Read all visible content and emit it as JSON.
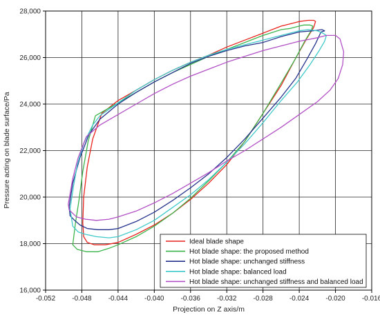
{
  "chart_data": {
    "type": "line",
    "title": "",
    "xlabel": "Projection on Z axis/m",
    "ylabel": "Pressure acting on blade surface/Pa",
    "xlim": [
      -0.052,
      -0.016
    ],
    "ylim": [
      16000,
      28000
    ],
    "x_ticks": [
      -0.052,
      -0.048,
      -0.044,
      -0.04,
      -0.036,
      -0.032,
      -0.028,
      -0.024,
      -0.02,
      -0.016
    ],
    "x_tick_labels": [
      "-0.052",
      "-0.048",
      "-0.044",
      "-0.040",
      "-0.036",
      "-0.032",
      "-0.028",
      "-0.024",
      "-0.020",
      "-0.016"
    ],
    "y_ticks": [
      16000,
      18000,
      20000,
      22000,
      24000,
      26000,
      28000
    ],
    "y_tick_labels": [
      "16,000",
      "18,000",
      "20,000",
      "22,000",
      "24,000",
      "26,000",
      "28,000"
    ],
    "grid": true,
    "legend_position": "bottom-right",
    "series": [
      {
        "name": "Ideal blade shape",
        "color": "#e8211b",
        "x": [
          -0.0458,
          -0.0468,
          -0.0474,
          -0.0478,
          -0.0479,
          -0.0478,
          -0.0474,
          -0.0466,
          -0.0454,
          -0.044,
          -0.042,
          -0.04,
          -0.038,
          -0.036,
          -0.034,
          -0.032,
          -0.03,
          -0.028,
          -0.026,
          -0.0245,
          -0.0232,
          -0.0224,
          -0.0222,
          -0.0224,
          -0.023,
          -0.024,
          -0.025,
          -0.026,
          -0.028,
          -0.03,
          -0.032,
          -0.034,
          -0.036,
          -0.038,
          -0.04,
          -0.042,
          -0.044,
          -0.0458
        ],
        "y": [
          23600,
          22500,
          21300,
          20000,
          18900,
          18300,
          18050,
          17950,
          17950,
          18050,
          18400,
          18800,
          19300,
          19900,
          20600,
          21400,
          22400,
          23600,
          24800,
          25900,
          26800,
          27300,
          27550,
          27600,
          27600,
          27550,
          27450,
          27350,
          27050,
          26750,
          26450,
          26100,
          25800,
          25450,
          25050,
          24600,
          24150,
          23600
        ]
      },
      {
        "name": "Hot blade shape: the proposed method",
        "color": "#3cb44b",
        "x": [
          -0.0465,
          -0.0473,
          -0.0479,
          -0.0483,
          -0.0487,
          -0.049,
          -0.0485,
          -0.0475,
          -0.0462,
          -0.045,
          -0.044,
          -0.042,
          -0.04,
          -0.038,
          -0.036,
          -0.034,
          -0.032,
          -0.03,
          -0.028,
          -0.026,
          -0.0245,
          -0.0234,
          -0.0227,
          -0.0225,
          -0.0228,
          -0.0235,
          -0.024,
          -0.025,
          -0.026,
          -0.028,
          -0.03,
          -0.032,
          -0.034,
          -0.036,
          -0.038,
          -0.04,
          -0.042,
          -0.044,
          -0.0465
        ],
        "y": [
          23500,
          22400,
          21100,
          19900,
          18900,
          17950,
          17750,
          17650,
          17650,
          17800,
          17950,
          18300,
          18750,
          19300,
          19950,
          20700,
          21500,
          22400,
          23600,
          24900,
          25900,
          26700,
          27150,
          27350,
          27400,
          27400,
          27350,
          27250,
          27200,
          26950,
          26650,
          26350,
          26050,
          25700,
          25350,
          24950,
          24500,
          24050,
          23500
        ]
      },
      {
        "name": "Hot blade shape: unchanged stiffness",
        "color": "#23318c",
        "x": [
          -0.0472,
          -0.0482,
          -0.049,
          -0.0494,
          -0.0493,
          -0.0488,
          -0.0482,
          -0.0474,
          -0.0462,
          -0.045,
          -0.044,
          -0.042,
          -0.04,
          -0.038,
          -0.036,
          -0.034,
          -0.032,
          -0.03,
          -0.028,
          -0.026,
          -0.0244,
          -0.0232,
          -0.0222,
          -0.0216,
          -0.0212,
          -0.0215,
          -0.0225,
          -0.024,
          -0.026,
          -0.028,
          -0.03,
          -0.032,
          -0.034,
          -0.036,
          -0.038,
          -0.04,
          -0.042,
          -0.044,
          -0.046,
          -0.0472
        ],
        "y": [
          22700,
          21700,
          20600,
          19600,
          19200,
          19000,
          18800,
          18650,
          18600,
          18600,
          18650,
          18950,
          19350,
          19850,
          20400,
          21000,
          21700,
          22500,
          23400,
          24300,
          25100,
          25900,
          26600,
          27100,
          27150,
          27200,
          27150,
          27100,
          26900,
          26650,
          26500,
          26300,
          26050,
          25750,
          25350,
          24950,
          24500,
          24000,
          23350,
          22700
        ]
      },
      {
        "name": "Hot blade shape: balanced load",
        "color": "#3ec8c8",
        "x": [
          -0.0468,
          -0.0478,
          -0.0485,
          -0.0489,
          -0.0493,
          -0.049,
          -0.0484,
          -0.0476,
          -0.0464,
          -0.045,
          -0.044,
          -0.042,
          -0.04,
          -0.038,
          -0.036,
          -0.034,
          -0.032,
          -0.03,
          -0.028,
          -0.026,
          -0.0242,
          -0.0228,
          -0.0218,
          -0.0212,
          -0.021,
          -0.0214,
          -0.022,
          -0.023,
          -0.024,
          -0.026,
          -0.028,
          -0.03,
          -0.032,
          -0.034,
          -0.036,
          -0.038,
          -0.04,
          -0.042,
          -0.044,
          -0.046,
          -0.0468
        ],
        "y": [
          23100,
          22300,
          21400,
          20500,
          19500,
          18750,
          18500,
          18400,
          18300,
          18250,
          18300,
          18600,
          19000,
          19550,
          20100,
          20750,
          21500,
          22300,
          23200,
          24150,
          24950,
          25700,
          26300,
          26700,
          26950,
          27050,
          27150,
          27200,
          27150,
          26950,
          26750,
          26550,
          26350,
          26100,
          25800,
          25450,
          25050,
          24600,
          24050,
          23500,
          23100
        ]
      },
      {
        "name": "Hot blade shape: unchanged stiffness and balanced load",
        "color": "#b14fc5",
        "x": [
          -0.0475,
          -0.0484,
          -0.049,
          -0.0495,
          -0.0494,
          -0.0486,
          -0.0476,
          -0.0464,
          -0.045,
          -0.044,
          -0.042,
          -0.04,
          -0.038,
          -0.036,
          -0.034,
          -0.032,
          -0.03,
          -0.028,
          -0.026,
          -0.024,
          -0.022,
          -0.0206,
          -0.0197,
          -0.0192,
          -0.0191,
          -0.0195,
          -0.02,
          -0.021,
          -0.022,
          -0.024,
          -0.026,
          -0.028,
          -0.03,
          -0.032,
          -0.034,
          -0.036,
          -0.038,
          -0.04,
          -0.042,
          -0.044,
          -0.046,
          -0.0475
        ],
        "y": [
          22600,
          21700,
          20800,
          19700,
          19450,
          19150,
          19050,
          19000,
          19050,
          19150,
          19400,
          19750,
          20150,
          20600,
          21050,
          21550,
          22000,
          22500,
          23000,
          23550,
          24100,
          24600,
          25100,
          25700,
          26250,
          26800,
          26950,
          26950,
          26850,
          26700,
          26500,
          26300,
          26050,
          25800,
          25500,
          25200,
          24850,
          24450,
          24000,
          23550,
          23100,
          22600
        ]
      }
    ]
  }
}
